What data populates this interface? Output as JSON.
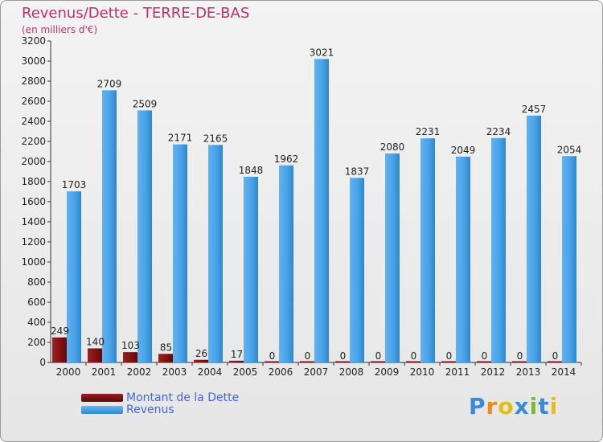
{
  "title": "Revenus/Dette - TERRE-DE-BAS",
  "subtitle": "(en milliers d'€)",
  "legend": {
    "debt": "Montant de la Dette",
    "revenue": "Revenus"
  },
  "logo": {
    "letters": [
      "P",
      "r",
      "o",
      "x",
      "i",
      "t",
      "i"
    ]
  },
  "colors": {
    "debt": "#7a1010",
    "revenue": "#4aa3e8",
    "logo": [
      "#3a8ad8",
      "#f08a18",
      "#e0c018",
      "#3a8ad8",
      "#80b830",
      "#3a8ad8",
      "#e0c018"
    ]
  },
  "chart_data": {
    "type": "bar",
    "title": "Revenus/Dette - TERRE-DE-BAS",
    "ylabel": "(en milliers d'€)",
    "xlabel": "",
    "ylim": [
      0,
      3200
    ],
    "yticks": [
      0,
      200,
      400,
      600,
      800,
      1000,
      1200,
      1400,
      1600,
      1800,
      2000,
      2200,
      2400,
      2600,
      2800,
      3000,
      3200
    ],
    "grid": false,
    "legend_position": "bottom-left",
    "categories": [
      "2000",
      "2001",
      "2002",
      "2003",
      "2004",
      "2005",
      "2006",
      "2007",
      "2008",
      "2009",
      "2010",
      "2011",
      "2012",
      "2013",
      "2014"
    ],
    "series": [
      {
        "name": "Montant de la Dette",
        "values": [
          249,
          140,
          103,
          85,
          26,
          17,
          0,
          0,
          0,
          0,
          0,
          0,
          0,
          0,
          0
        ]
      },
      {
        "name": "Revenus",
        "values": [
          1703,
          2709,
          2509,
          2171,
          2165,
          1848,
          1962,
          3021,
          1837,
          2080,
          2231,
          2049,
          2234,
          2457,
          2054
        ]
      }
    ]
  }
}
